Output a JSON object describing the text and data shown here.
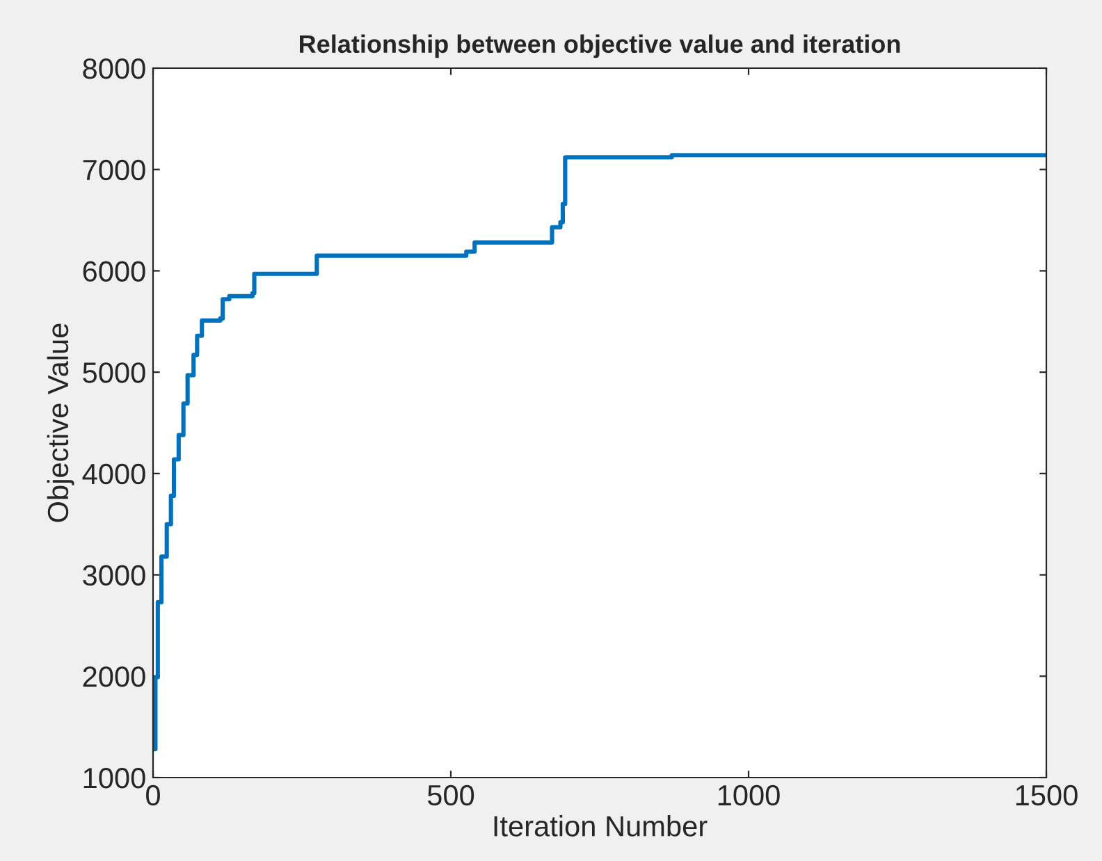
{
  "chart_data": {
    "type": "step",
    "title": "Relationship between objective value and iteration",
    "xlabel": "Iteration Number",
    "ylabel": "Objective Value",
    "x": [
      0,
      4,
      8,
      14,
      23,
      30,
      35,
      43,
      51,
      58,
      68,
      74,
      82,
      113,
      117,
      128,
      151,
      167,
      170,
      272,
      275,
      526,
      537,
      540,
      670,
      673,
      684,
      688,
      692,
      871,
      1500
    ],
    "series": [
      {
        "color": "#0072bd",
        "values": [
          1280,
          1990,
          2730,
          3180,
          3500,
          3780,
          4140,
          4380,
          4690,
          4970,
          5170,
          5360,
          5510,
          5530,
          5720,
          5750,
          5750,
          5780,
          5970,
          5970,
          6150,
          6190,
          6190,
          6280,
          6430,
          6430,
          6480,
          6660,
          7120,
          7140,
          7140
        ]
      }
    ],
    "xlim": [
      0,
      1500
    ],
    "xticks": [
      0,
      500,
      1000,
      1500
    ],
    "ylim": [
      1000,
      8000
    ],
    "yticks": [
      1000,
      2000,
      3000,
      4000,
      5000,
      6000,
      7000,
      8000
    ],
    "grid": false,
    "legend": false
  }
}
